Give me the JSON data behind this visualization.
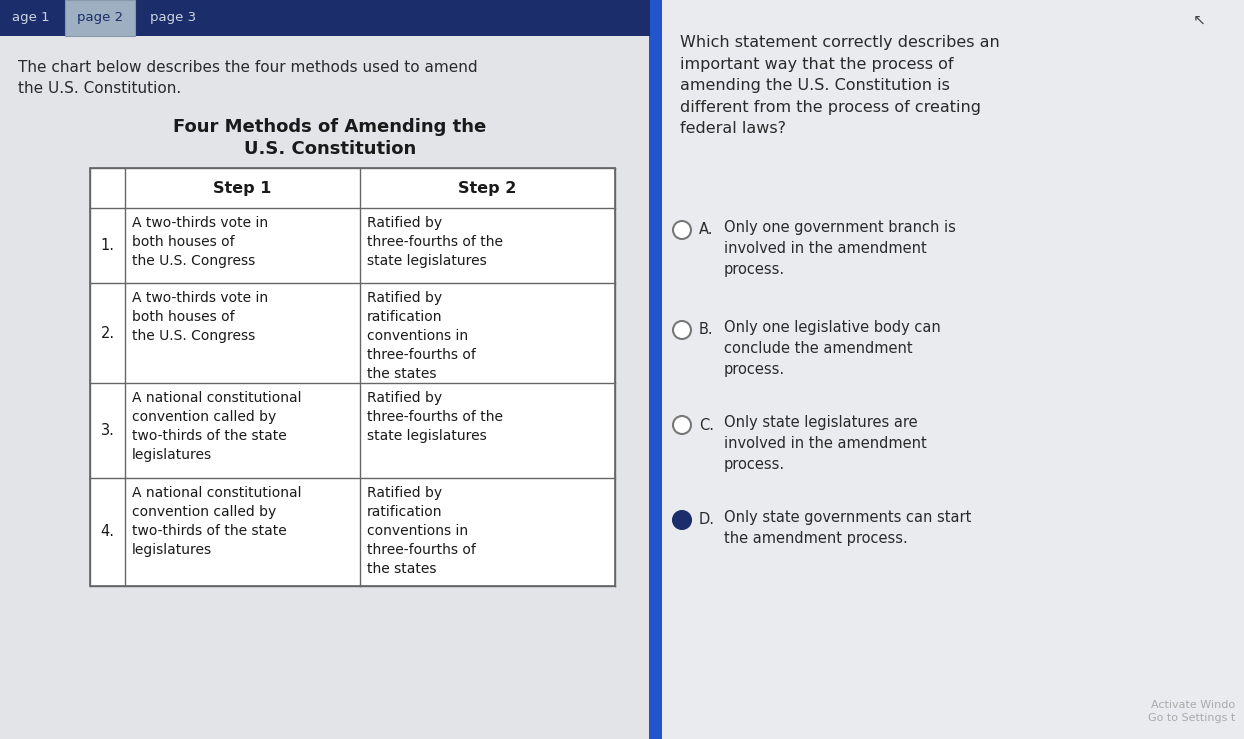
{
  "fig_w": 12.44,
  "fig_h": 7.39,
  "dpi": 100,
  "bg_color": "#c8cdd4",
  "left_bg": "#e2e4e8",
  "right_bg": "#eaebee",
  "tab_bar_color": "#1b2d6b",
  "tab_active_bg": "#9dafc0",
  "tab_inactive_text": "#ccd6e0",
  "tab_active_text": "#1b2d6b",
  "tabs": [
    "age 1",
    "page 2",
    "page 3"
  ],
  "active_tab": 1,
  "divider_color": "#2255cc",
  "left_intro": "The chart below describes the four methods used to amend\nthe U.S. Constitution.",
  "chart_title_line1": "Four Methods of Amending the",
  "chart_title_line2": "U.S. Constitution",
  "col_header_1": "Step 1",
  "col_header_2": "Step 2",
  "rows": [
    {
      "num": "1.",
      "step1": "A two-thirds vote in\nboth houses of\nthe U.S. Congress",
      "step2": "Ratified by\nthree-fourths of the\nstate legislatures"
    },
    {
      "num": "2.",
      "step1": "A two-thirds vote in\nboth houses of\nthe U.S. Congress",
      "step2": "Ratified by\nratification\nconventions in\nthree-fourths of\nthe states"
    },
    {
      "num": "3.",
      "step1": "A national constitutional\nconvention called by\ntwo-thirds of the state\nlegislatures",
      "step2": "Ratified by\nthree-fourths of the\nstate legislatures"
    },
    {
      "num": "4.",
      "step1": "A national constitutional\nconvention called by\ntwo-thirds of the state\nlegislatures",
      "step2": "Ratified by\nratification\nconventions in\nthree-fourths of\nthe states"
    }
  ],
  "question_text": "Which statement correctly describes an\nimportant way that the process of\namending the U.S. Constitution is\ndifferent from the process of creating\nfederal laws?",
  "options": [
    {
      "label": "A.",
      "text": "Only one government branch is\ninvolved in the amendment\nprocess.",
      "selected": false
    },
    {
      "label": "B.",
      "text": "Only one legislative body can\nconclude the amendment\nprocess.",
      "selected": false
    },
    {
      "label": "C.",
      "text": "Only state legislatures are\ninvolved in the amendment\nprocess.",
      "selected": false
    },
    {
      "label": "D.",
      "text": "Only state governments can start\nthe amendment process.",
      "selected": true
    }
  ],
  "watermark": "Activate Windo\nGo to Settings t",
  "circle_empty_edge": "#777777",
  "circle_filled_color": "#1b2d6b",
  "table_border_color": "#666666",
  "text_color_dark": "#1a1a1a",
  "text_color_intro": "#2a2a2a",
  "text_color_question": "#2a2a2a"
}
